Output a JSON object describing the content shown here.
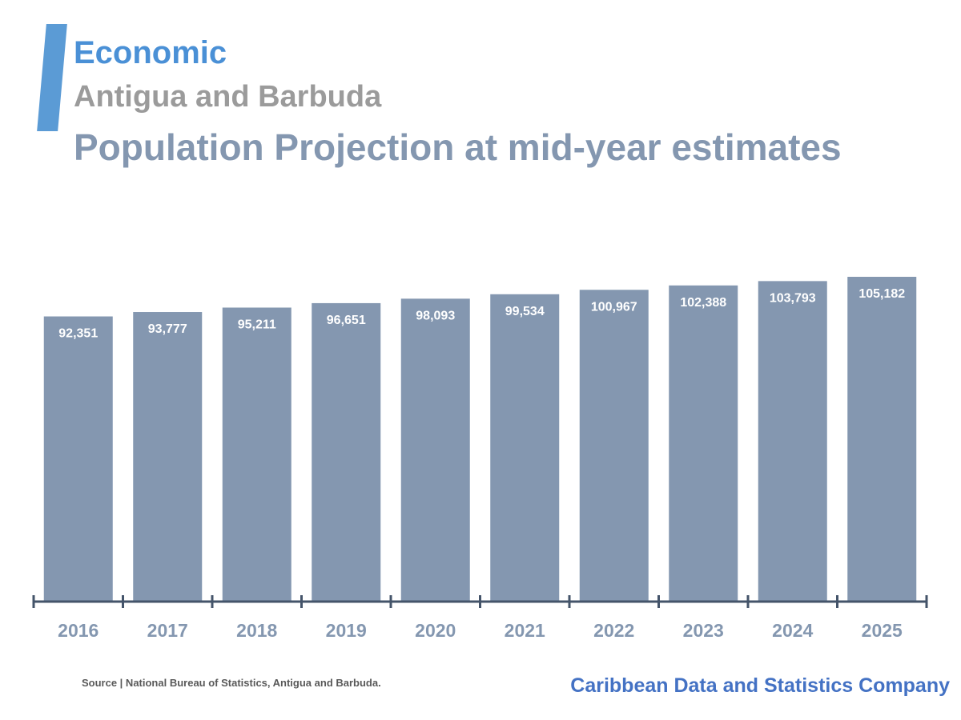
{
  "header": {
    "section": "Economic",
    "country": "Antigua and Barbuda",
    "title": "Population Projection at mid-year estimates"
  },
  "chart_data": {
    "type": "bar",
    "categories": [
      "2016",
      "2017",
      "2018",
      "2019",
      "2020",
      "2021",
      "2022",
      "2023",
      "2024",
      "2025"
    ],
    "values": [
      92351,
      93777,
      95211,
      96651,
      98093,
      99534,
      100967,
      102388,
      103793,
      105182
    ],
    "data_labels": [
      "92,351",
      "93,777",
      "95,211",
      "96,651",
      "98,093",
      "99,534",
      "100,967",
      "102,388",
      "103,793",
      "105,182"
    ],
    "ylim": [
      0,
      105182
    ],
    "grid": false,
    "legend": "none",
    "colors": {
      "bar": "#8497b0",
      "axis": "#44546a",
      "tick_label": "#8497b0",
      "data_label": "#ffffff"
    }
  },
  "footer": {
    "source": "Source | National Bureau of Statistics, Antigua and Barbuda.",
    "company": "Caribbean Data and Statistics Company"
  }
}
